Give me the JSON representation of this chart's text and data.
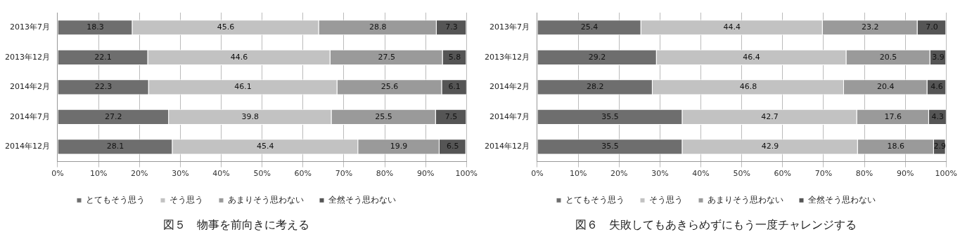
{
  "chart_data": [
    {
      "type": "bar",
      "orientation": "horizontal",
      "stacked": true,
      "title": "図５　物事を前向きに考える",
      "categories": [
        "2013年7月",
        "2013年12月",
        "2014年2月",
        "2014年7月",
        "2014年12月"
      ],
      "series": [
        {
          "name": "とてもそう思う",
          "color": "#6e6e6e",
          "values": [
            18.3,
            22.1,
            22.3,
            27.2,
            28.1
          ]
        },
        {
          "name": "そう思う",
          "color": "#c2c2c2",
          "values": [
            45.6,
            44.6,
            46.1,
            39.8,
            45.4
          ]
        },
        {
          "name": "あまりそう思わない",
          "color": "#9a9a9a",
          "values": [
            28.8,
            27.5,
            25.6,
            25.5,
            19.9
          ]
        },
        {
          "name": "全然そう思わない",
          "color": "#555555",
          "values": [
            7.3,
            5.8,
            6.1,
            7.5,
            6.5
          ]
        }
      ],
      "xlim": [
        0,
        100
      ],
      "xticks": [
        {
          "value": 0,
          "label": "0%"
        },
        {
          "value": 10,
          "label": "10%"
        },
        {
          "value": 20,
          "label": "20%"
        },
        {
          "value": 30,
          "label": "30%"
        },
        {
          "value": 40,
          "label": "40%"
        },
        {
          "value": 50,
          "label": "50%"
        },
        {
          "value": 60,
          "label": "60%"
        },
        {
          "value": 70,
          "label": "70%"
        },
        {
          "value": 80,
          "label": "80%"
        },
        {
          "value": 90,
          "label": "90%"
        },
        {
          "value": 100,
          "label": "100%"
        }
      ],
      "grid": "x",
      "legend": "bottom",
      "data_labels": true
    },
    {
      "type": "bar",
      "orientation": "horizontal",
      "stacked": true,
      "title": "図６　失敗してもあきらめずにもう一度チャレンジする",
      "categories": [
        "2013年7月",
        "2013年12月",
        "2014年2月",
        "2014年7月",
        "2014年12月"
      ],
      "series": [
        {
          "name": "とてもそう思う",
          "color": "#6e6e6e",
          "values": [
            25.4,
            29.2,
            28.2,
            35.5,
            35.5
          ]
        },
        {
          "name": "そう思う",
          "color": "#c2c2c2",
          "values": [
            44.4,
            46.4,
            46.8,
            42.7,
            42.9
          ]
        },
        {
          "name": "あまりそう思わない",
          "color": "#9a9a9a",
          "values": [
            23.2,
            20.5,
            20.4,
            17.6,
            18.6
          ]
        },
        {
          "name": "全然そう思わない",
          "color": "#555555",
          "values": [
            7.0,
            3.9,
            4.6,
            4.3,
            2.9
          ],
          "value_labels": [
            "7.0",
            "3.9",
            "4.6",
            "4.3",
            "2.9"
          ]
        }
      ],
      "xlim": [
        0,
        100
      ],
      "xticks": [
        {
          "value": 0,
          "label": "0%"
        },
        {
          "value": 10,
          "label": "10%"
        },
        {
          "value": 20,
          "label": "20%"
        },
        {
          "value": 30,
          "label": "30%"
        },
        {
          "value": 40,
          "label": "40%"
        },
        {
          "value": 50,
          "label": "50%"
        },
        {
          "value": 60,
          "label": "60%"
        },
        {
          "value": 70,
          "label": "70%"
        },
        {
          "value": 80,
          "label": "80%"
        },
        {
          "value": 90,
          "label": "90%"
        },
        {
          "value": 100,
          "label": "100%"
        }
      ],
      "grid": "x",
      "legend": "bottom",
      "data_labels": true
    }
  ]
}
